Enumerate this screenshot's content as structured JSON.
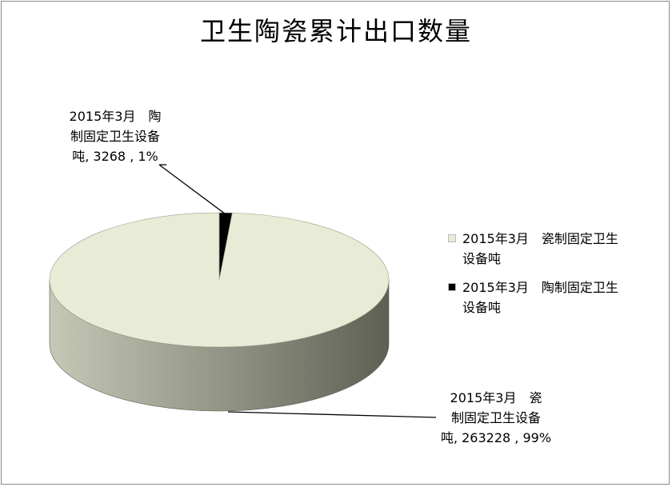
{
  "chart_data": {
    "type": "pie",
    "three_d": true,
    "title": "卫生陶瓷累计出口数量",
    "categories": [
      "2015年3月　瓷制固定卫生设备吨",
      "2015年3月　陶制固定卫生设备吨"
    ],
    "series": [
      {
        "values": [
          263228,
          3268
        ],
        "percents": [
          99,
          1
        ]
      }
    ],
    "colors": [
      "#e8ebd6",
      "#000000"
    ],
    "data_labels": [
      {
        "line1": "2015年3月　瓷",
        "line2": "制固定卫生设备",
        "line3": "吨, 263228 , 99%"
      },
      {
        "line1": "2015年3月　陶",
        "line2": "制固定卫生设备",
        "line3": "吨, 3268 , 1%"
      }
    ],
    "legend": {
      "position": "right",
      "items": [
        {
          "line1": "2015年3月　瓷制固定卫生",
          "line2": "设备吨",
          "color": "#e8ebd6"
        },
        {
          "line1": "2015年3月　陶制固定卫生",
          "line2": "设备吨",
          "color": "#000000"
        }
      ]
    }
  }
}
